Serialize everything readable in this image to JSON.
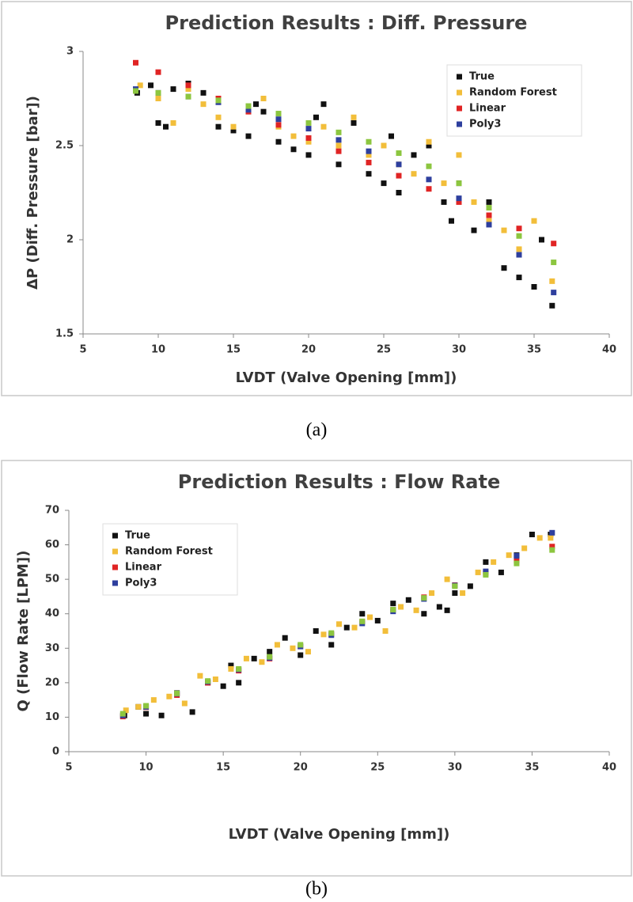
{
  "chart_data": [
    {
      "type": "scatter",
      "title": "Prediction Results : Diff. Pressure",
      "x_label": "LVDT (Valve Opening [mm])",
      "y_label": "ΔP (Diff. Pressure [bar])",
      "caption": "(a)",
      "xlim": [
        5,
        40
      ],
      "xticks": [
        5,
        10,
        15,
        20,
        25,
        30,
        35,
        40
      ],
      "ylim": [
        1.5,
        3
      ],
      "yticks": [
        1.5,
        2,
        2.5,
        3
      ],
      "legend": "upper right",
      "series": [
        {
          "name": "True",
          "color": "#111111",
          "x": [
            8.6,
            9.5,
            10,
            10.5,
            11,
            12,
            13,
            14,
            15,
            16,
            16.5,
            17,
            18,
            19,
            20,
            20.5,
            21,
            22,
            23,
            24,
            25,
            25.5,
            26,
            27,
            28,
            29,
            29.5,
            30,
            31,
            32,
            33,
            34,
            35,
            35.5,
            36.2
          ],
          "values": [
            2.78,
            2.82,
            2.62,
            2.6,
            2.8,
            2.83,
            2.78,
            2.6,
            2.58,
            2.55,
            2.72,
            2.68,
            2.52,
            2.48,
            2.45,
            2.65,
            2.72,
            2.4,
            2.62,
            2.35,
            2.3,
            2.55,
            2.25,
            2.45,
            2.5,
            2.2,
            2.1,
            2.3,
            2.05,
            2.2,
            1.85,
            1.8,
            1.75,
            2.0,
            1.65
          ]
        },
        {
          "name": "Random Forest",
          "color": "#f2be3a",
          "x": [
            8.8,
            10,
            11,
            12,
            13,
            14,
            15,
            16,
            17,
            18,
            19,
            20,
            21,
            22,
            23,
            24,
            25,
            26,
            27,
            28,
            29,
            30,
            31,
            32,
            33,
            34,
            35,
            36.2
          ],
          "values": [
            2.82,
            2.75,
            2.62,
            2.8,
            2.72,
            2.65,
            2.6,
            2.7,
            2.75,
            2.6,
            2.55,
            2.52,
            2.6,
            2.5,
            2.65,
            2.45,
            2.5,
            2.4,
            2.35,
            2.52,
            2.3,
            2.45,
            2.2,
            2.1,
            2.05,
            1.95,
            2.1,
            1.78
          ]
        },
        {
          "name": "Linear",
          "color": "#e02424",
          "x": [
            8.5,
            10,
            12,
            14,
            16,
            18,
            20,
            22,
            24,
            26,
            28,
            30,
            32,
            34,
            36.3
          ],
          "values": [
            2.94,
            2.89,
            2.82,
            2.75,
            2.68,
            2.61,
            2.54,
            2.47,
            2.41,
            2.34,
            2.27,
            2.2,
            2.13,
            2.06,
            1.98
          ]
        },
        {
          "name": "Poly3",
          "color": "#2e3f9e",
          "x": [
            8.5,
            10,
            12,
            14,
            16,
            18,
            20,
            22,
            24,
            26,
            28,
            30,
            32,
            34,
            36.3
          ],
          "values": [
            2.8,
            2.78,
            2.76,
            2.73,
            2.69,
            2.64,
            2.59,
            2.53,
            2.47,
            2.4,
            2.32,
            2.22,
            2.08,
            1.92,
            1.72
          ]
        },
        {
          "color": "#8cc63f",
          "x": [
            8.5,
            10,
            12,
            14,
            16,
            18,
            20,
            22,
            24,
            26,
            28,
            30,
            32,
            34,
            36.3
          ],
          "values": [
            2.79,
            2.78,
            2.76,
            2.74,
            2.71,
            2.67,
            2.62,
            2.57,
            2.52,
            2.46,
            2.39,
            2.3,
            2.17,
            2.02,
            1.88
          ]
        }
      ]
    },
    {
      "type": "scatter",
      "title": "Prediction Results : Flow Rate",
      "x_label": "LVDT (Valve Opening [mm])",
      "y_label": "Q (Flow Rate [LPM])",
      "caption": "(b)",
      "xlim": [
        5,
        40
      ],
      "xticks": [
        5,
        10,
        15,
        20,
        25,
        30,
        35,
        40
      ],
      "ylim": [
        0,
        70
      ],
      "yticks": [
        0,
        10,
        20,
        30,
        40,
        50,
        60,
        70
      ],
      "legend": "upper left",
      "series": [
        {
          "name": "True",
          "color": "#111111",
          "x": [
            8.6,
            9.5,
            10,
            11,
            12,
            13,
            14,
            15,
            15.5,
            16,
            17,
            18,
            19,
            20,
            21,
            22,
            23,
            24,
            25,
            26,
            27,
            28,
            29,
            29.5,
            30,
            31,
            32,
            33,
            34,
            35,
            36.2
          ],
          "values": [
            10.5,
            13,
            11,
            10.5,
            17,
            11.5,
            20,
            19,
            25,
            20,
            27,
            29,
            33,
            28,
            35,
            31,
            36,
            40,
            38,
            43,
            44,
            40,
            42,
            41,
            46,
            48,
            55,
            52,
            57,
            63,
            63
          ]
        },
        {
          "name": "Random Forest",
          "color": "#f2be3a",
          "x": [
            8.7,
            9.5,
            10.5,
            11.5,
            12.5,
            13.5,
            14.5,
            15.5,
            16.5,
            17.5,
            18.5,
            19.5,
            20.5,
            21.5,
            22.5,
            23.5,
            24.5,
            25.5,
            26.5,
            27.5,
            28.5,
            29.5,
            30.5,
            31.5,
            32.5,
            33.5,
            34.5,
            35.5,
            36.2
          ],
          "values": [
            12,
            13,
            15,
            16,
            14,
            22,
            21,
            24,
            27,
            26,
            31,
            30,
            29,
            34,
            37,
            36,
            39,
            35,
            42,
            41,
            46,
            50,
            46,
            52,
            55,
            57,
            59,
            62,
            62
          ]
        },
        {
          "name": "Linear",
          "color": "#e02424",
          "x": [
            8.5,
            10,
            12,
            14,
            16,
            18,
            20,
            22,
            24,
            26,
            28,
            30,
            32,
            34,
            36.3
          ],
          "values": [
            10.2,
            12.9,
            16.4,
            20,
            23.5,
            27,
            30.6,
            34.1,
            37.7,
            41.2,
            44.8,
            48.3,
            51.8,
            55.4,
            59.5
          ]
        },
        {
          "name": "Poly3",
          "color": "#2e3f9e",
          "x": [
            8.5,
            10,
            12,
            14,
            16,
            18,
            20,
            22,
            24,
            26,
            28,
            30,
            32,
            34,
            36.3
          ],
          "values": [
            10.5,
            13,
            16.8,
            20.3,
            23.8,
            27.2,
            30.5,
            33.8,
            37.2,
            40.7,
            44.3,
            48.2,
            52.3,
            56.8,
            63.5
          ]
        },
        {
          "color": "#8cc63f",
          "x": [
            8.5,
            10,
            12,
            14,
            16,
            18,
            20,
            22,
            24,
            26,
            28,
            30,
            32,
            34,
            36.3
          ],
          "values": [
            11,
            13.3,
            16.9,
            20.5,
            24,
            27.5,
            31,
            34.4,
            37.8,
            41.2,
            44.6,
            48,
            51.3,
            54.6,
            58.5
          ]
        }
      ]
    }
  ]
}
